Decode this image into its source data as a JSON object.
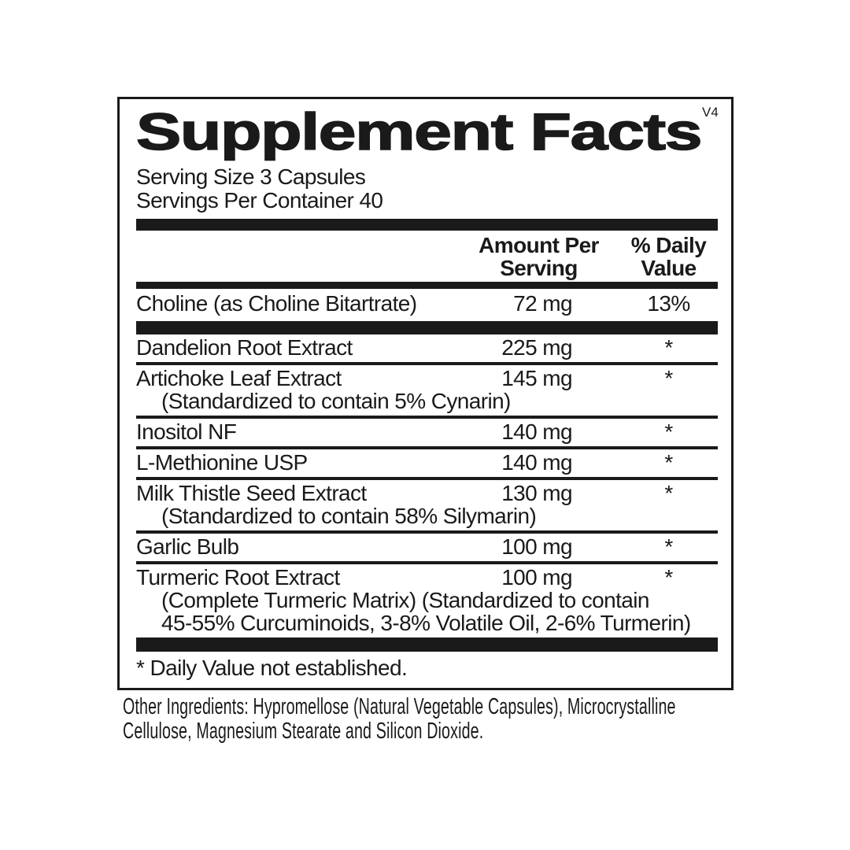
{
  "label": {
    "title": "Supplement Facts",
    "version": "V4",
    "serving_size": "Serving Size 3 Capsules",
    "servings_per_container": "Servings Per Container 40",
    "columns": {
      "amount": "Amount Per\nServing",
      "daily_value": "% Daily\nValue"
    },
    "rows": [
      {
        "name": "Choline (as Choline Bitartrate)",
        "amount": "72 mg",
        "dv": "13%"
      },
      {
        "name": "Dandelion Root Extract",
        "amount": "225 mg",
        "dv": "*"
      },
      {
        "name": "Artichoke Leaf Extract",
        "amount": "145 mg",
        "dv": "*",
        "note": "(Standardized to contain 5% Cynarin)"
      },
      {
        "name": "Inositol NF",
        "amount": "140 mg",
        "dv": "*"
      },
      {
        "name": "L-Methionine USP",
        "amount": "140 mg",
        "dv": "*"
      },
      {
        "name": "Milk Thistle Seed Extract",
        "amount": "130 mg",
        "dv": "*",
        "note": "(Standardized to contain 58% Silymarin)"
      },
      {
        "name": "Garlic Bulb",
        "amount": "100 mg",
        "dv": "*"
      },
      {
        "name": "Turmeric Root Extract",
        "amount": "100 mg",
        "dv": "*",
        "note": "(Complete Turmeric Matrix) (Standardized to contain\n45-55% Curcuminoids, 3-8% Volatile Oil, 2-6% Turmerin)"
      }
    ],
    "footnote": "* Daily Value not established.",
    "other_ingredients": "Other Ingredients: Hypromellose (Natural Vegetable Capsules), Microcrystalline\nCellulose, Magnesium Stearate and Silicon Dioxide."
  },
  "colors": {
    "ink": "#1a1a1a",
    "background": "#ffffff"
  }
}
